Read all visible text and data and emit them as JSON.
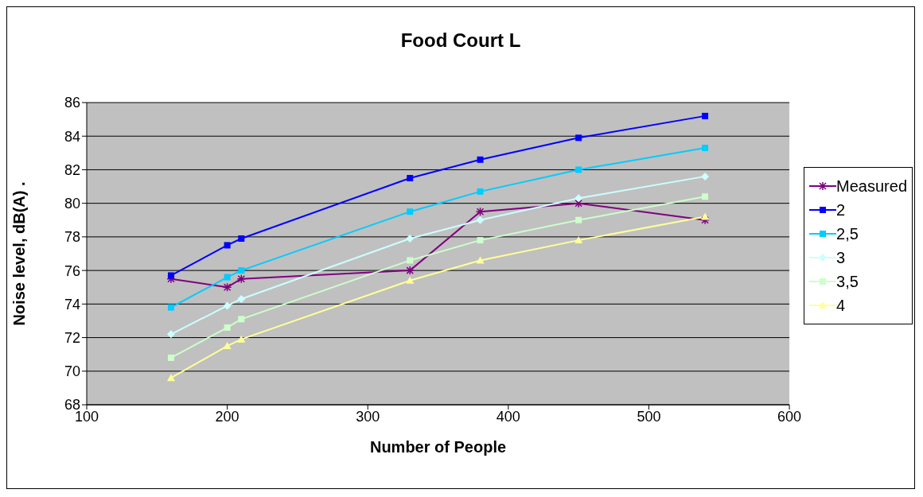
{
  "chart_data": {
    "type": "line",
    "title": "Food Court L",
    "xlabel": "Number of People",
    "ylabel": "Noise level, dB(A)   .",
    "x": [
      160,
      200,
      210,
      330,
      380,
      450,
      540
    ],
    "xlim": [
      100,
      600
    ],
    "xticks": [
      100,
      200,
      300,
      400,
      500,
      600
    ],
    "ylim": [
      68,
      86
    ],
    "yticks": [
      68,
      70,
      72,
      74,
      76,
      78,
      80,
      82,
      84,
      86
    ],
    "grid": "y",
    "legend": "right",
    "series": [
      {
        "name": "Measured",
        "color": "#800080",
        "marker": "cross",
        "values": [
          75.5,
          75,
          75.5,
          76,
          79.5,
          80,
          79
        ]
      },
      {
        "name": "2",
        "color": "#0000ff",
        "marker": "square",
        "values": [
          75.7,
          77.5,
          77.9,
          81.5,
          82.6,
          83.9,
          85.2
        ]
      },
      {
        "name": "2,5",
        "color": "#00ccff",
        "marker": "square",
        "values": [
          73.8,
          75.6,
          76.0,
          79.5,
          80.7,
          82.0,
          83.3
        ]
      },
      {
        "name": "3",
        "color": "#ccffff",
        "marker": "diamond",
        "values": [
          72.2,
          73.9,
          74.3,
          77.9,
          79.0,
          80.3,
          81.6
        ]
      },
      {
        "name": "3,5",
        "color": "#ccffcc",
        "marker": "square",
        "values": [
          70.8,
          72.6,
          73.1,
          76.6,
          77.8,
          79.0,
          80.4
        ]
      },
      {
        "name": "4",
        "color": "#ffff99",
        "marker": "triangle",
        "values": [
          69.6,
          71.5,
          71.9,
          75.4,
          76.6,
          77.8,
          79.2
        ]
      }
    ]
  }
}
